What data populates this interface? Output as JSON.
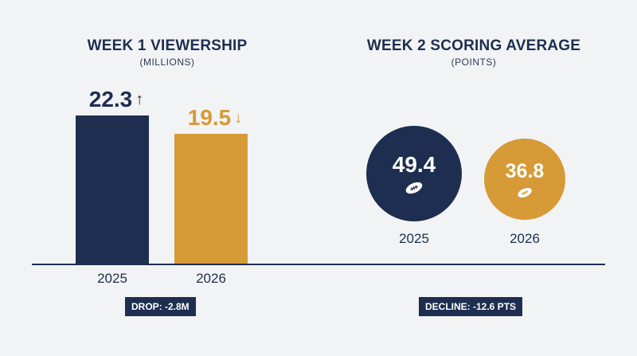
{
  "colors": {
    "navy": "#1d2e50",
    "gold": "#d69a36",
    "background": "#f2f3f4"
  },
  "badge_icon": "football-icon",
  "chart_data": [
    {
      "type": "bar",
      "title": "WEEK 1 VIEWERSHIP",
      "subtitle": "(MILLIONS)",
      "categories": [
        "2025",
        "2026"
      ],
      "values": [
        22.3,
        19.5
      ],
      "value_labels": [
        "22.3",
        "19.5"
      ],
      "trend_arrows": [
        "↑",
        "↓"
      ],
      "bar_colors": [
        "#1d2e50",
        "#d69a36"
      ],
      "ylim": [
        0,
        22.3
      ],
      "footnote": "DROP: -2.8M"
    },
    {
      "type": "bubble",
      "title": "WEEK 2 SCORING AVERAGE",
      "subtitle": "(POINTS)",
      "categories": [
        "2025",
        "2026"
      ],
      "values": [
        49.4,
        36.8
      ],
      "value_labels": [
        "49.4",
        "36.8"
      ],
      "bubble_colors": [
        "#1d2e50",
        "#d69a36"
      ],
      "footnote": "DECLINE: -12.6 PTS"
    }
  ]
}
